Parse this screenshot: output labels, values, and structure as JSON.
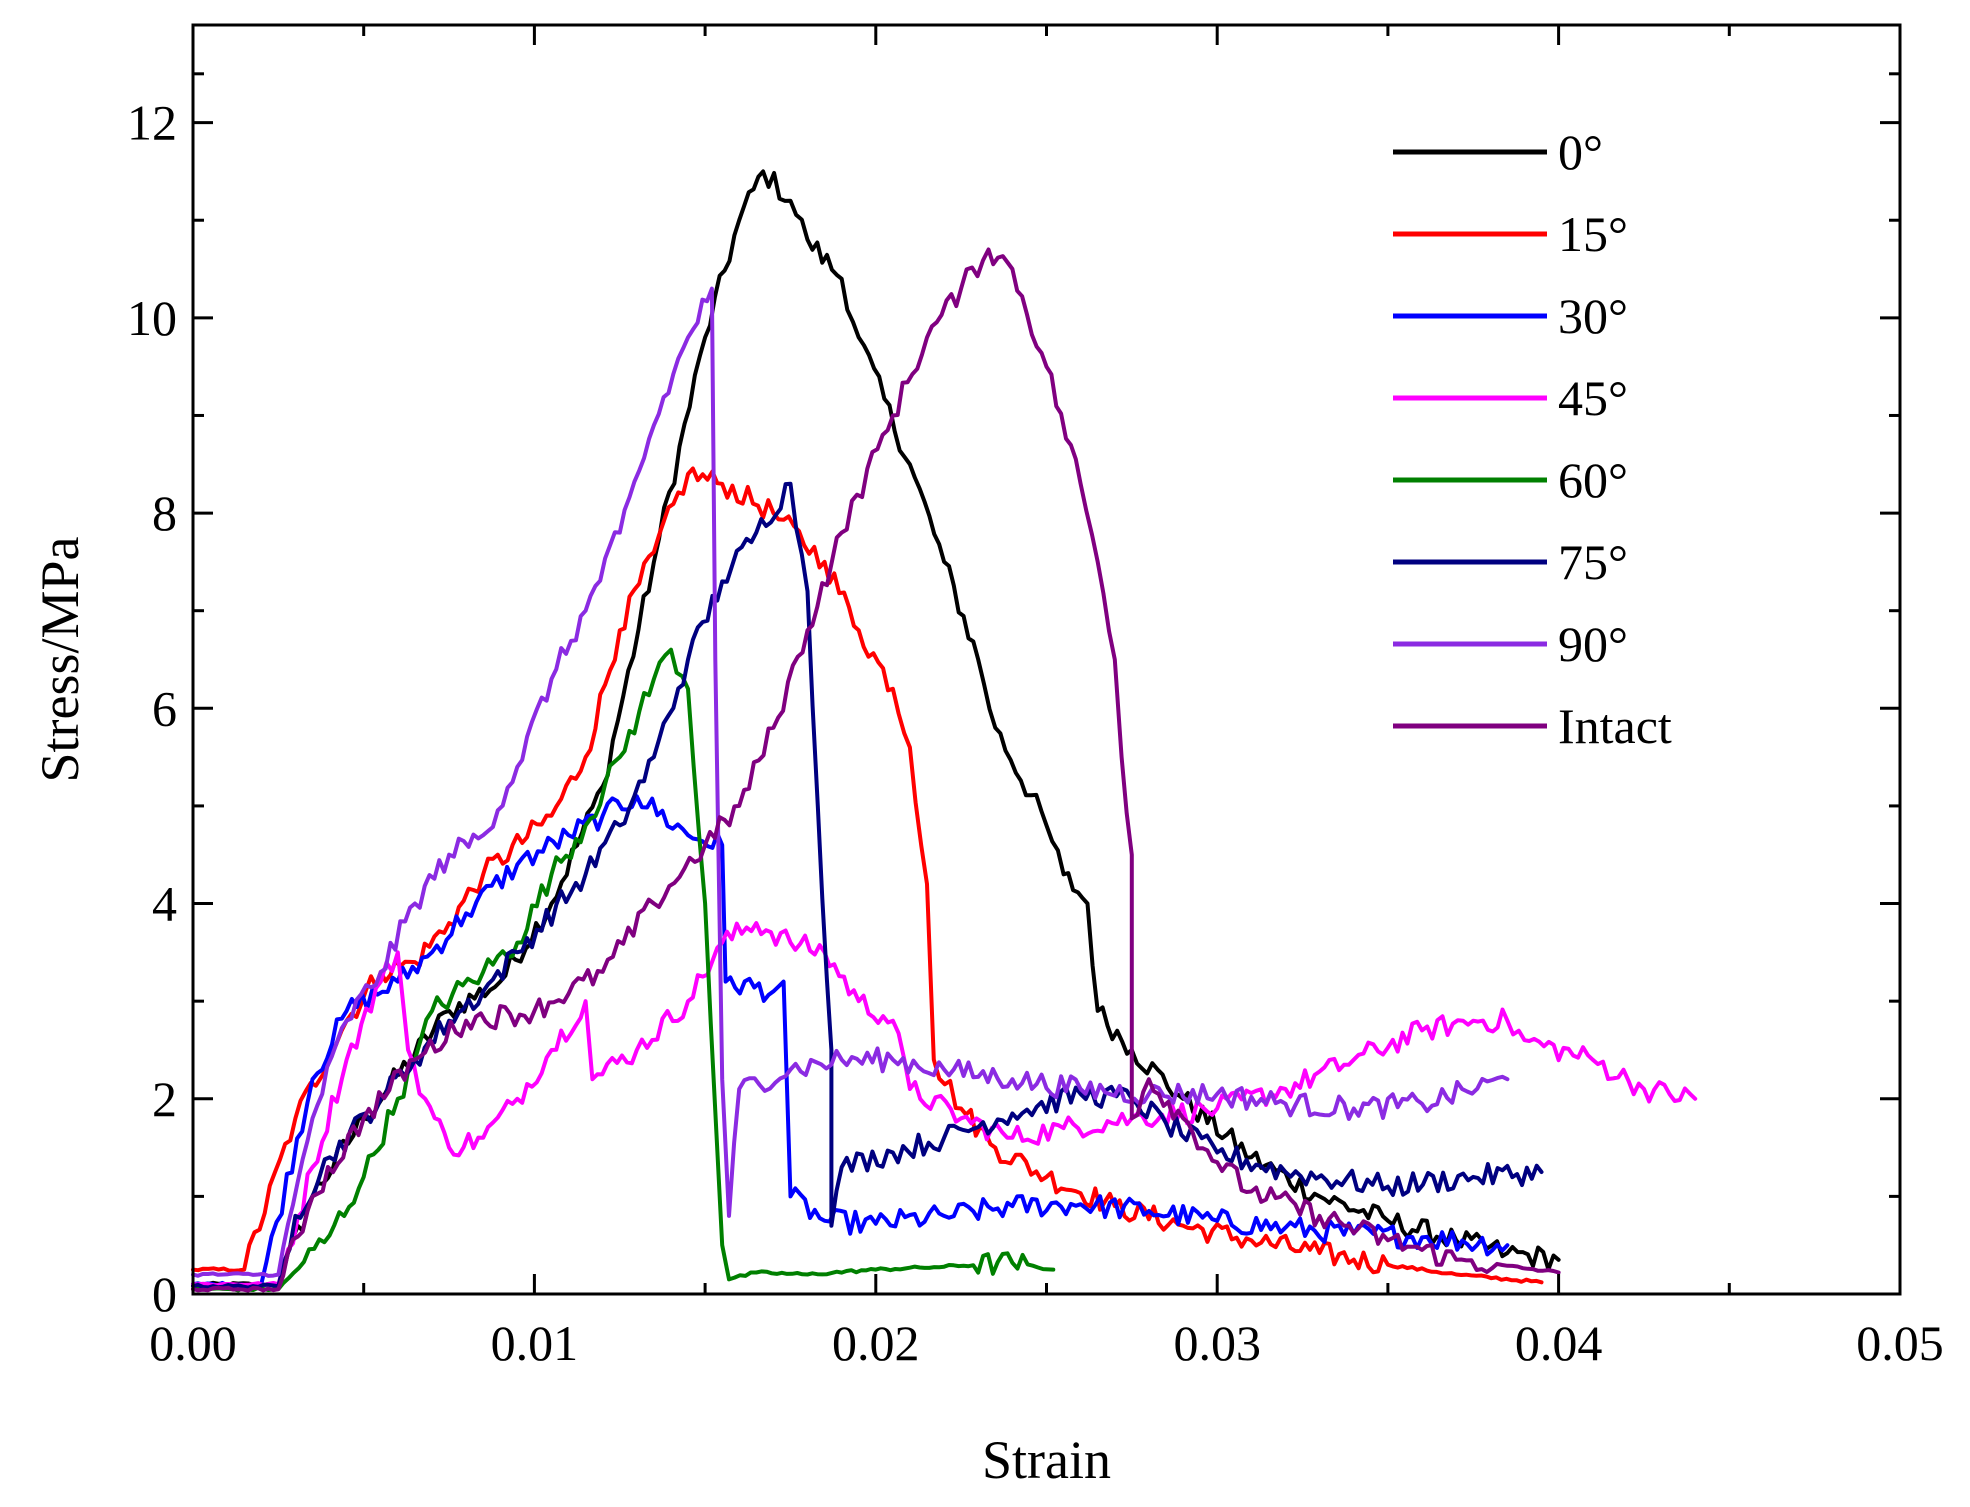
{
  "chart_data": {
    "type": "line",
    "title": "",
    "xlabel": "Strain",
    "ylabel": "Stress/MPa",
    "xlim": [
      0,
      0.05
    ],
    "ylim": [
      0,
      13
    ],
    "xticks": [
      0.0,
      0.01,
      0.02,
      0.03,
      0.04,
      0.05
    ],
    "xtick_labels": [
      "0.00",
      "0.01",
      "0.02",
      "0.03",
      "0.04",
      "0.05"
    ],
    "yticks": [
      0,
      2,
      4,
      6,
      8,
      10,
      12
    ],
    "ytick_labels": [
      "0",
      "2",
      "4",
      "6",
      "8",
      "10",
      "12"
    ],
    "grid": false,
    "legend_position": "top-right",
    "series": [
      {
        "name": "0°",
        "color": "#000000",
        "points": [
          [
            0,
            0.1
          ],
          [
            0.0025,
            0.1
          ],
          [
            0.0035,
            1.0
          ],
          [
            0.005,
            1.8
          ],
          [
            0.0075,
            2.9
          ],
          [
            0.009,
            3.2
          ],
          [
            0.0105,
            4.0
          ],
          [
            0.012,
            5.2
          ],
          [
            0.0135,
            7.5
          ],
          [
            0.015,
            9.8
          ],
          [
            0.016,
            11.0
          ],
          [
            0.0167,
            11.5
          ],
          [
            0.0175,
            11.2
          ],
          [
            0.018,
            10.8
          ],
          [
            0.019,
            10.4
          ],
          [
            0.0195,
            9.8
          ],
          [
            0.021,
            8.5
          ],
          [
            0.022,
            7.5
          ],
          [
            0.023,
            6.5
          ],
          [
            0.0235,
            5.8
          ],
          [
            0.025,
            4.8
          ],
          [
            0.0255,
            4.3
          ],
          [
            0.0262,
            4.0
          ],
          [
            0.0265,
            2.9
          ],
          [
            0.0275,
            2.5
          ],
          [
            0.029,
            2.0
          ],
          [
            0.031,
            1.4
          ],
          [
            0.033,
            1.0
          ],
          [
            0.035,
            0.75
          ],
          [
            0.037,
            0.55
          ],
          [
            0.0385,
            0.42
          ],
          [
            0.04,
            0.35
          ]
        ]
      },
      {
        "name": "15°",
        "color": "#ff0000",
        "points": [
          [
            0,
            0.25
          ],
          [
            0.0015,
            0.25
          ],
          [
            0.003,
            1.8
          ],
          [
            0.0045,
            2.8
          ],
          [
            0.0055,
            3.3
          ],
          [
            0.0065,
            3.4
          ],
          [
            0.0075,
            3.8
          ],
          [
            0.0085,
            4.3
          ],
          [
            0.0105,
            4.9
          ],
          [
            0.0115,
            5.5
          ],
          [
            0.0125,
            6.8
          ],
          [
            0.0135,
            7.6
          ],
          [
            0.0145,
            8.4
          ],
          [
            0.0155,
            8.3
          ],
          [
            0.017,
            8.0
          ],
          [
            0.0185,
            7.5
          ],
          [
            0.0195,
            6.8
          ],
          [
            0.0205,
            6.2
          ],
          [
            0.021,
            5.6
          ],
          [
            0.0215,
            4.2
          ],
          [
            0.0217,
            2.4
          ],
          [
            0.0225,
            1.9
          ],
          [
            0.0235,
            1.5
          ],
          [
            0.025,
            1.2
          ],
          [
            0.027,
            0.9
          ],
          [
            0.029,
            0.7
          ],
          [
            0.031,
            0.55
          ],
          [
            0.033,
            0.42
          ],
          [
            0.035,
            0.3
          ],
          [
            0.037,
            0.2
          ],
          [
            0.0395,
            0.12
          ]
        ]
      },
      {
        "name": "30°",
        "color": "#0000ff",
        "points": [
          [
            0,
            0.1
          ],
          [
            0.002,
            0.1
          ],
          [
            0.0035,
            2.2
          ],
          [
            0.0045,
            2.9
          ],
          [
            0.006,
            3.2
          ],
          [
            0.007,
            3.5
          ],
          [
            0.008,
            3.9
          ],
          [
            0.0095,
            4.4
          ],
          [
            0.011,
            4.7
          ],
          [
            0.012,
            4.9
          ],
          [
            0.013,
            5.1
          ],
          [
            0.0145,
            4.7
          ],
          [
            0.0155,
            4.6
          ],
          [
            0.0156,
            3.2
          ],
          [
            0.017,
            3.1
          ],
          [
            0.0173,
            3.2
          ],
          [
            0.0175,
            1.0
          ],
          [
            0.0185,
            0.75
          ],
          [
            0.02,
            0.72
          ],
          [
            0.022,
            0.8
          ],
          [
            0.024,
            0.9
          ],
          [
            0.026,
            0.92
          ],
          [
            0.028,
            0.85
          ],
          [
            0.03,
            0.75
          ],
          [
            0.032,
            0.68
          ],
          [
            0.034,
            0.62
          ],
          [
            0.036,
            0.58
          ],
          [
            0.0385,
            0.5
          ]
        ]
      },
      {
        "name": "45°",
        "color": "#ff00ff",
        "points": [
          [
            0,
            0.1
          ],
          [
            0.0025,
            0.1
          ],
          [
            0.0035,
            1.3
          ],
          [
            0.0045,
            2.4
          ],
          [
            0.0055,
            3.2
          ],
          [
            0.006,
            3.5
          ],
          [
            0.0063,
            2.5
          ],
          [
            0.0068,
            2.0
          ],
          [
            0.0075,
            1.5
          ],
          [
            0.0085,
            1.6
          ],
          [
            0.0095,
            2.0
          ],
          [
            0.0105,
            2.5
          ],
          [
            0.0115,
            3.0
          ],
          [
            0.0117,
            2.2
          ],
          [
            0.013,
            2.5
          ],
          [
            0.0145,
            3.0
          ],
          [
            0.0155,
            3.6
          ],
          [
            0.0165,
            3.8
          ],
          [
            0.0175,
            3.6
          ],
          [
            0.0185,
            3.5
          ],
          [
            0.0195,
            3.0
          ],
          [
            0.0205,
            2.8
          ],
          [
            0.021,
            2.1
          ],
          [
            0.0225,
            1.8
          ],
          [
            0.024,
            1.6
          ],
          [
            0.0255,
            1.7
          ],
          [
            0.0275,
            1.8
          ],
          [
            0.03,
            1.9
          ],
          [
            0.032,
            2.1
          ],
          [
            0.034,
            2.4
          ],
          [
            0.036,
            2.7
          ],
          [
            0.0375,
            2.8
          ],
          [
            0.0385,
            2.8
          ],
          [
            0.039,
            2.6
          ],
          [
            0.041,
            2.4
          ],
          [
            0.0425,
            2.1
          ],
          [
            0.044,
            2.0
          ]
        ]
      },
      {
        "name": "60°",
        "color": "#008000",
        "points": [
          [
            0,
            0.05
          ],
          [
            0.0025,
            0.05
          ],
          [
            0.004,
            0.6
          ],
          [
            0.005,
            1.2
          ],
          [
            0.006,
            2.0
          ],
          [
            0.0065,
            2.4
          ],
          [
            0.007,
            2.9
          ],
          [
            0.0085,
            3.3
          ],
          [
            0.0095,
            3.6
          ],
          [
            0.0105,
            4.3
          ],
          [
            0.0115,
            4.8
          ],
          [
            0.0125,
            5.5
          ],
          [
            0.0135,
            6.3
          ],
          [
            0.014,
            6.6
          ],
          [
            0.0145,
            6.2
          ],
          [
            0.015,
            4.0
          ],
          [
            0.0155,
            0.5
          ],
          [
            0.0157,
            0.15
          ],
          [
            0.0165,
            0.22
          ],
          [
            0.018,
            0.2
          ],
          [
            0.02,
            0.25
          ],
          [
            0.022,
            0.28
          ],
          [
            0.024,
            0.32
          ],
          [
            0.0252,
            0.25
          ]
        ]
      },
      {
        "name": "75°",
        "color": "#000080",
        "points": [
          [
            0,
            0.08
          ],
          [
            0.0025,
            0.08
          ],
          [
            0.003,
            0.8
          ],
          [
            0.004,
            1.4
          ],
          [
            0.0055,
            2.0
          ],
          [
            0.0065,
            2.4
          ],
          [
            0.0075,
            2.8
          ],
          [
            0.0085,
            3.1
          ],
          [
            0.0095,
            3.5
          ],
          [
            0.0115,
            4.3
          ],
          [
            0.0125,
            4.8
          ],
          [
            0.0135,
            5.5
          ],
          [
            0.0145,
            6.5
          ],
          [
            0.0155,
            7.3
          ],
          [
            0.0165,
            7.8
          ],
          [
            0.0175,
            8.3
          ],
          [
            0.018,
            7.2
          ],
          [
            0.0183,
            5.0
          ],
          [
            0.0187,
            2.5
          ],
          [
            0.0187,
            0.7
          ],
          [
            0.019,
            1.3
          ],
          [
            0.0205,
            1.45
          ],
          [
            0.022,
            1.6
          ],
          [
            0.024,
            1.85
          ],
          [
            0.026,
            2.05
          ],
          [
            0.0275,
            2.0
          ],
          [
            0.0285,
            1.75
          ],
          [
            0.03,
            1.45
          ],
          [
            0.032,
            1.25
          ],
          [
            0.035,
            1.1
          ],
          [
            0.0375,
            1.2
          ],
          [
            0.0395,
            1.25
          ]
        ]
      },
      {
        "name": "90°",
        "color": "#8b2be2",
        "points": [
          [
            0,
            0.2
          ],
          [
            0.0025,
            0.2
          ],
          [
            0.0035,
            1.8
          ],
          [
            0.0045,
            2.8
          ],
          [
            0.0055,
            3.3
          ],
          [
            0.0065,
            4.0
          ],
          [
            0.0075,
            4.5
          ],
          [
            0.0085,
            4.7
          ],
          [
            0.0095,
            5.4
          ],
          [
            0.0105,
            6.3
          ],
          [
            0.0115,
            7.0
          ],
          [
            0.0125,
            7.8
          ],
          [
            0.0135,
            8.9
          ],
          [
            0.0145,
            9.8
          ],
          [
            0.0152,
            10.3
          ],
          [
            0.0153,
            6.5
          ],
          [
            0.0155,
            2.2
          ],
          [
            0.0157,
            0.8
          ],
          [
            0.016,
            2.1
          ],
          [
            0.0175,
            2.3
          ],
          [
            0.019,
            2.4
          ],
          [
            0.0205,
            2.4
          ],
          [
            0.022,
            2.3
          ],
          [
            0.024,
            2.2
          ],
          [
            0.026,
            2.1
          ],
          [
            0.028,
            2.05
          ],
          [
            0.03,
            2.05
          ],
          [
            0.032,
            1.95
          ],
          [
            0.034,
            1.9
          ],
          [
            0.036,
            1.95
          ],
          [
            0.0385,
            2.2
          ]
        ]
      },
      {
        "name": "Intact",
        "color": "#800080",
        "points": [
          [
            0,
            0.05
          ],
          [
            0.0025,
            0.05
          ],
          [
            0.0035,
            1.0
          ],
          [
            0.005,
            1.8
          ],
          [
            0.0065,
            2.4
          ],
          [
            0.008,
            2.8
          ],
          [
            0.01,
            2.9
          ],
          [
            0.012,
            3.3
          ],
          [
            0.0135,
            4.0
          ],
          [
            0.015,
            4.6
          ],
          [
            0.016,
            5.0
          ],
          [
            0.017,
            5.8
          ],
          [
            0.018,
            6.8
          ],
          [
            0.019,
            7.8
          ],
          [
            0.0205,
            9.0
          ],
          [
            0.0215,
            9.8
          ],
          [
            0.0225,
            10.3
          ],
          [
            0.0233,
            10.7
          ],
          [
            0.024,
            10.5
          ],
          [
            0.025,
            9.5
          ],
          [
            0.026,
            8.3
          ],
          [
            0.0265,
            7.5
          ],
          [
            0.027,
            6.5
          ],
          [
            0.0272,
            5.5
          ],
          [
            0.0275,
            4.5
          ],
          [
            0.0275,
            1.8
          ],
          [
            0.028,
            2.2
          ],
          [
            0.029,
            1.8
          ],
          [
            0.03,
            1.35
          ],
          [
            0.031,
            1.05
          ],
          [
            0.033,
            0.8
          ],
          [
            0.035,
            0.55
          ],
          [
            0.037,
            0.35
          ],
          [
            0.04,
            0.22
          ]
        ]
      }
    ]
  }
}
